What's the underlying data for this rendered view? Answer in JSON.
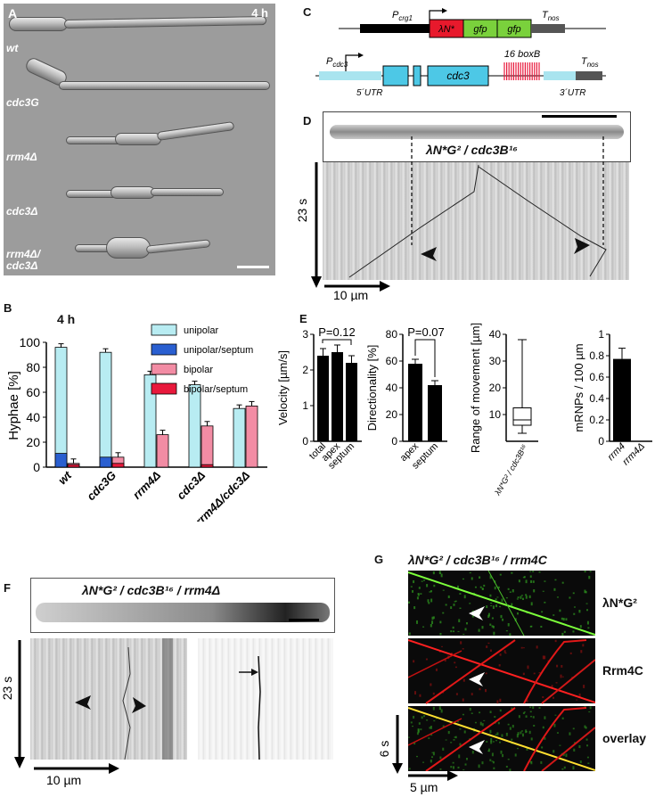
{
  "panelA": {
    "letter": "A",
    "time": "4 h",
    "rows": [
      "wt",
      "cdc3G",
      "rrm4Δ",
      "cdc3Δ",
      "rrm4Δ/\ncdc3Δ"
    ]
  },
  "panelB": {
    "letter": "B",
    "time": "4 h",
    "ylabel": "Hyphae [%]",
    "legend": [
      {
        "name": "unipolar",
        "color": "#b8ecf2"
      },
      {
        "name": "unipolar/septum",
        "color": "#2a5fd0"
      },
      {
        "name": "bipolar",
        "color": "#f28ca4"
      },
      {
        "name": "bipolar/septum",
        "color": "#e8193c"
      }
    ]
  },
  "panelC": {
    "letter": "C",
    "pcrg1": "P",
    "pcrg1_sub": "crg1",
    "lambda": "λN*",
    "gfp1": "gfp",
    "gfp2": "gfp",
    "tnos": "T",
    "tnos_sub": "nos",
    "pcdc3": "P",
    "pcdc3_sub": "cdc3",
    "cdc3": "cdc3",
    "boxb": "16 boxB",
    "utr5": "5´UTR",
    "utr3": "3´UTR"
  },
  "panelD": {
    "letter": "D",
    "title": "λN*G² / cdc3B¹⁶",
    "time": "23 s",
    "dist": "10 µm"
  },
  "panelE": {
    "letter": "E",
    "p1": "P=0.12",
    "p2": "P=0.07",
    "y1": "Velocity [µm/s]",
    "y2": "Directionality [%]",
    "y3": "Range of movement [µm]",
    "y4": "mRNPs / 100 µm",
    "x1": [
      "total",
      "apex",
      "septum"
    ],
    "x2": [
      "apex",
      "septum"
    ],
    "x3": "λN*G² / cdc3B¹⁶",
    "x4": [
      "rrm4",
      "rrm4Δ"
    ]
  },
  "panelF": {
    "letter": "F",
    "title": "λN*G² / cdc3B¹⁶ / rrm4Δ",
    "time": "23 s",
    "dist": "10 µm"
  },
  "panelG": {
    "letter": "G",
    "title": "λN*G² / cdc3B¹⁶ / rrm4C",
    "labels": [
      "λN*G²",
      "Rrm4C",
      "overlay"
    ],
    "time": "6 s",
    "dist": "5 µm"
  },
  "chart_data": [
    {
      "type": "bar",
      "title": "4 h",
      "ylabel": "Hyphae [%]",
      "ylim": [
        0,
        100
      ],
      "categories": [
        "wt",
        "cdc3G",
        "rrm4Δ",
        "cdc3Δ",
        "rrm4Δ/cdc3Δ"
      ],
      "series": [
        {
          "name": "unipolar",
          "values": [
            96,
            92,
            74,
            66,
            47
          ]
        },
        {
          "name": "unipolar/septum",
          "values": [
            11,
            8,
            0,
            0,
            0
          ]
        },
        {
          "name": "bipolar",
          "values": [
            3,
            8,
            26,
            33,
            49
          ]
        },
        {
          "name": "bipolar/septum",
          "values": [
            2,
            3,
            0,
            2,
            0
          ]
        }
      ]
    },
    {
      "type": "bar",
      "ylabel": "Velocity [µm/s]",
      "ylim": [
        0,
        3
      ],
      "categories": [
        "total",
        "apex",
        "septum"
      ],
      "values": [
        2.4,
        2.5,
        2.2
      ]
    },
    {
      "type": "bar",
      "ylabel": "Directionality [%]",
      "ylim": [
        0,
        80
      ],
      "categories": [
        "apex",
        "septum"
      ],
      "values": [
        58,
        42
      ]
    },
    {
      "type": "box",
      "ylabel": "Range of movement [µm]",
      "ylim": [
        0,
        40
      ],
      "categories": [
        "λN*G² / cdc3B¹⁶"
      ],
      "min": 3,
      "q1": 6,
      "median": 8,
      "q3": 12.5,
      "max": 38
    },
    {
      "type": "bar",
      "ylabel": "mRNPs / 100 µm",
      "ylim": [
        0,
        1.0
      ],
      "categories": [
        "rrm4",
        "rrm4Δ"
      ],
      "values": [
        0.77,
        0
      ]
    }
  ]
}
